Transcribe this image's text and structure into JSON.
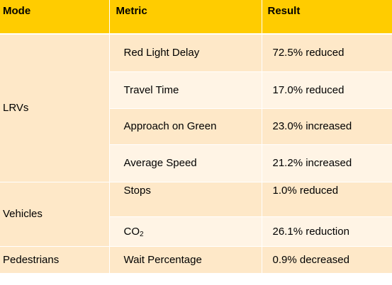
{
  "table": {
    "headers": {
      "mode": "Mode",
      "metric": "Metric",
      "result": "Result"
    },
    "groups": [
      {
        "mode": "LRVs"
      },
      {
        "mode": "Vehicles"
      },
      {
        "mode": "Pedestrians"
      }
    ],
    "rows": [
      {
        "metric": "Red Light Delay",
        "result": "72.5% reduced"
      },
      {
        "metric": "Travel Time",
        "result": "17.0% reduced"
      },
      {
        "metric": "Approach on Green",
        "result": "23.0% increased"
      },
      {
        "metric": "Average Speed",
        "result": "21.2% increased"
      },
      {
        "metric": "Stops",
        "result": "1.0% reduced"
      },
      {
        "metric": "CO",
        "metric_subscript": "2",
        "result": "26.1% reduction"
      },
      {
        "metric": "Wait Percentage",
        "result": "0.9% decreased"
      }
    ]
  },
  "colors": {
    "header": "#FFCC00",
    "row_dark": "#FEE8C8",
    "row_light": "#FFF4E5",
    "separator": "#FFFFFF"
  }
}
